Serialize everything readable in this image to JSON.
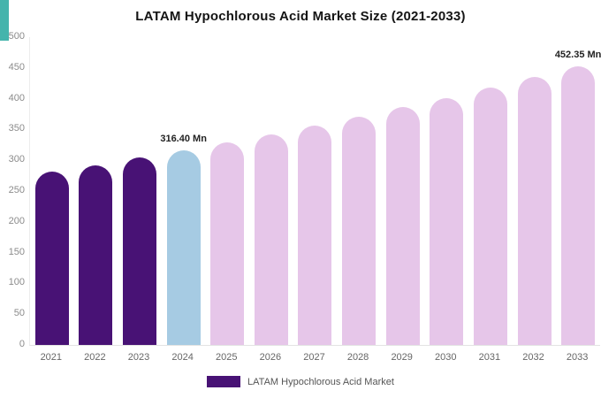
{
  "decor": {
    "teal_corner_color": "#45b4ac"
  },
  "chart_data": {
    "type": "bar",
    "title": "LATAM Hypochlorous Acid Market Size (2021-2033)",
    "categories": [
      "2021",
      "2022",
      "2023",
      "2024",
      "2025",
      "2026",
      "2027",
      "2028",
      "2029",
      "2030",
      "2031",
      "2032",
      "2033"
    ],
    "values": [
      281,
      292,
      304,
      316.4,
      329.2,
      342.5,
      356.4,
      370.8,
      385.9,
      401.5,
      417.8,
      434.7,
      452.35
    ],
    "bar_labels": [
      "",
      "",
      "",
      "316.40 Mn",
      "",
      "",
      "",
      "",
      "",
      "",
      "",
      "",
      "452.35 Mn"
    ],
    "bar_colors": [
      "#481275",
      "#481275",
      "#481275",
      "#a6cbe3",
      "#e6c6e9",
      "#e6c6e9",
      "#e6c6e9",
      "#e6c6e9",
      "#e6c6e9",
      "#e6c6e9",
      "#e6c6e9",
      "#e6c6e9",
      "#e6c6e9"
    ],
    "ylim": [
      0,
      500
    ],
    "ytick_step": 50,
    "grid": false,
    "legend_position": "bottom",
    "legend": [
      {
        "label": "LATAM Hypochlorous Acid Market",
        "color": "#481275"
      }
    ]
  }
}
